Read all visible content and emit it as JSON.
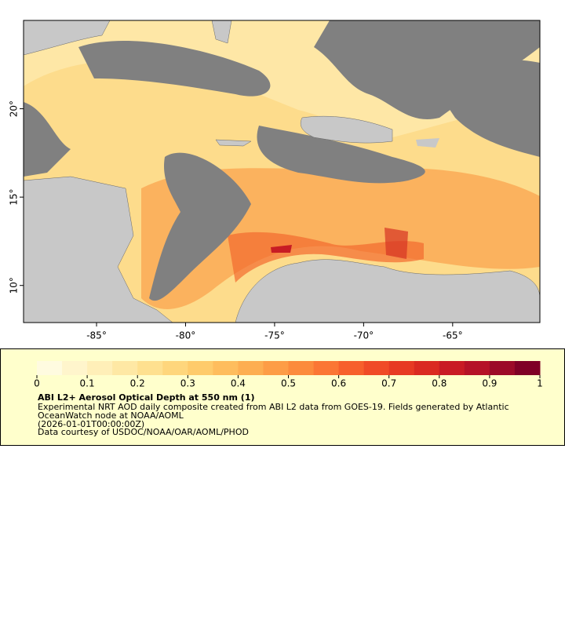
{
  "chart_data": {
    "type": "map",
    "title": "ABI L2+ Aerosol Optical Depth at 550 nm (1)",
    "description": [
      "Experimental NRT AOD daily composite created from ABI L2 data from GOES-19. Fields generated by Atlantic",
      "OceanWatch node at NOAA/AOML",
      "(2026-01-01T00:00:00Z)",
      "Data courtesy of USDOC/NOAA/OAR/AOML/PHOD"
    ],
    "xlim": [
      -89.1,
      -60.1
    ],
    "ylim": [
      7.9,
      25
    ],
    "xticks": [
      {
        "value": -85,
        "label": "-85°"
      },
      {
        "value": -80,
        "label": "-80°"
      },
      {
        "value": -75,
        "label": "-75°"
      },
      {
        "value": -70,
        "label": "-70°"
      },
      {
        "value": -65,
        "label": "-65°"
      }
    ],
    "yticks": [
      {
        "value": 10,
        "label": "10°"
      },
      {
        "value": 15,
        "label": "15°"
      },
      {
        "value": 20,
        "label": "20°"
      }
    ],
    "colorbar": {
      "lim": [
        0,
        1
      ],
      "ticks": [
        0,
        0.1,
        0.2,
        0.3,
        0.4,
        0.5,
        0.6,
        0.7,
        0.8,
        0.9,
        1
      ],
      "colors": [
        "#fffbe0",
        "#fff5cc",
        "#ffefb8",
        "#fee8a4",
        "#fee08f",
        "#fed67c",
        "#fecb6b",
        "#febd5d",
        "#fdae51",
        "#fd9d46",
        "#fc8b3c",
        "#fb7634",
        "#f7602c",
        "#f04b27",
        "#e73a23",
        "#da2a21",
        "#c91b24",
        "#b51227",
        "#9c0a28",
        "#7f0026"
      ]
    }
  }
}
